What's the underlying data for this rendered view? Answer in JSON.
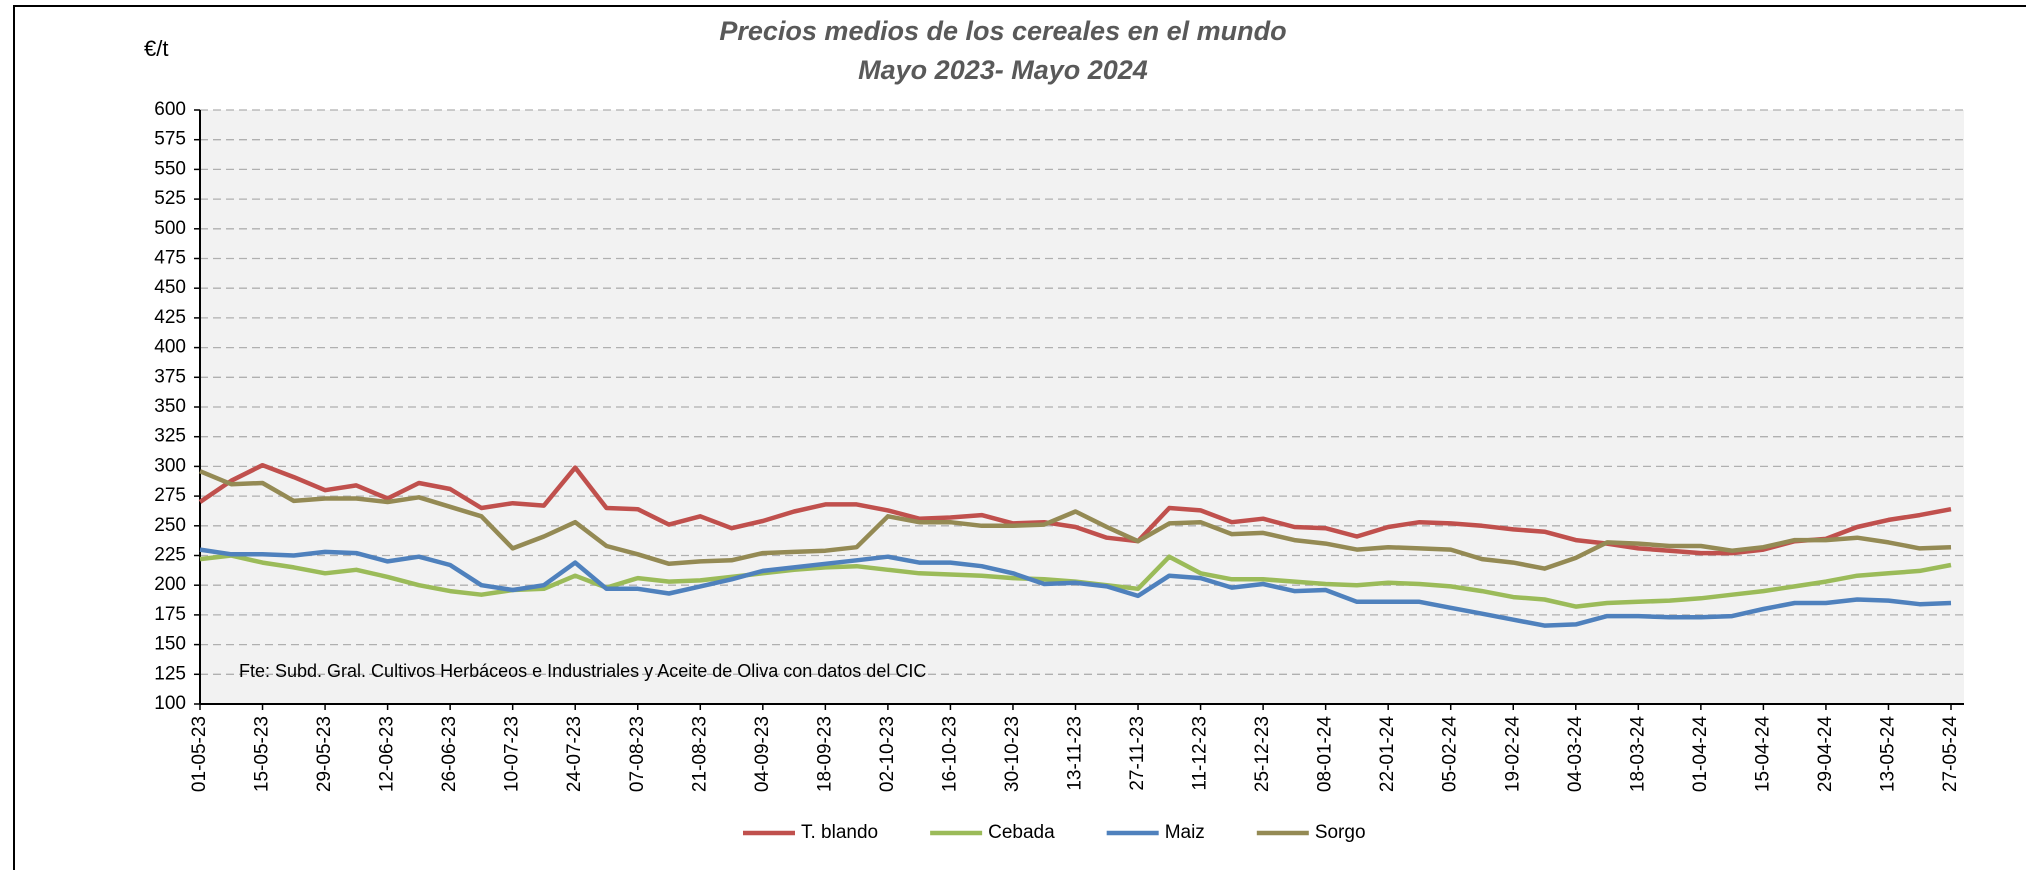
{
  "chart_data": {
    "type": "line",
    "title": "Precios medios de los cereales en el mundo",
    "subtitle": "Mayo 2023- Mayo 2024",
    "y_label": "€/t",
    "annotation": "Fte: Subd. Gral. Cultivos Herbáceos e Industriales y Aceite de Oliva con datos del CIC",
    "categories": [
      "01-05-23",
      null,
      "15-05-23",
      null,
      "29-05-23",
      null,
      "12-06-23",
      null,
      "26-06-23",
      null,
      "10-07-23",
      null,
      "24-07-23",
      null,
      "07-08-23",
      null,
      "21-08-23",
      null,
      "04-09-23",
      null,
      "18-09-23",
      null,
      "02-10-23",
      null,
      "16-10-23",
      null,
      "30-10-23",
      null,
      "13-11-23",
      null,
      "27-11-23",
      null,
      "11-12-23",
      null,
      "25-12-23",
      null,
      "08-01-24",
      null,
      "22-01-24",
      null,
      "05-02-24",
      null,
      "19-02-24",
      null,
      "04-03-24",
      null,
      "18-03-24",
      null,
      "01-04-24",
      null,
      "15-04-24",
      null,
      "29-04-24",
      null,
      "13-05-24",
      null,
      "27-05-24"
    ],
    "series": [
      {
        "name": "T. blando",
        "color": "#c0504d",
        "values": [
          270,
          288,
          301,
          291,
          280,
          284,
          273,
          286,
          281,
          265,
          269,
          267,
          299,
          265,
          264,
          251,
          258,
          248,
          254,
          262,
          268,
          268,
          263,
          256,
          257,
          259,
          252,
          253,
          249,
          240,
          237,
          265,
          263,
          253,
          256,
          249,
          248,
          241,
          249,
          253,
          252,
          250,
          247,
          245,
          238,
          235,
          231,
          229,
          227,
          227,
          230,
          237,
          239,
          249,
          255,
          259,
          264
        ]
      },
      {
        "name": "Cebada",
        "color": "#9bbb59",
        "values": [
          222,
          225,
          219,
          215,
          210,
          213,
          207,
          200,
          195,
          192,
          196,
          197,
          208,
          198,
          206,
          203,
          204,
          207,
          210,
          213,
          215,
          216,
          213,
          210,
          209,
          208,
          206,
          205,
          203,
          200,
          197,
          224,
          210,
          205,
          205,
          203,
          201,
          200,
          202,
          201,
          199,
          195,
          190,
          188,
          182,
          185,
          186,
          187,
          189,
          192,
          195,
          199,
          203,
          208,
          210,
          212,
          217
        ]
      },
      {
        "name": "Maiz",
        "color": "#4f81bd",
        "values": [
          230,
          226,
          226,
          225,
          228,
          227,
          220,
          224,
          217,
          200,
          196,
          200,
          219,
          197,
          197,
          193,
          199,
          205,
          212,
          215,
          218,
          221,
          224,
          219,
          219,
          216,
          210,
          201,
          202,
          199,
          191,
          208,
          206,
          198,
          201,
          195,
          196,
          186,
          186,
          186,
          181,
          176,
          171,
          166,
          167,
          174,
          174,
          173,
          173,
          174,
          180,
          185,
          185,
          188,
          187,
          184,
          185
        ]
      },
      {
        "name": "Sorgo",
        "color": "#948a54",
        "values": [
          296,
          285,
          286,
          271,
          273,
          273,
          270,
          274,
          266,
          258,
          231,
          241,
          253,
          233,
          226,
          218,
          220,
          221,
          227,
          228,
          229,
          232,
          258,
          253,
          253,
          250,
          250,
          251,
          262,
          249,
          237,
          252,
          253,
          243,
          244,
          238,
          235,
          230,
          232,
          231,
          230,
          222,
          219,
          214,
          223,
          236,
          235,
          233,
          233,
          229,
          232,
          238,
          238,
          240,
          236,
          231,
          232
        ]
      }
    ],
    "ylim": [
      100,
      600
    ],
    "yticks": [
      100,
      125,
      150,
      175,
      200,
      225,
      250,
      275,
      300,
      325,
      350,
      375,
      400,
      425,
      450,
      475,
      500,
      525,
      550,
      575,
      600
    ],
    "grid": true,
    "legend": "bottom"
  }
}
